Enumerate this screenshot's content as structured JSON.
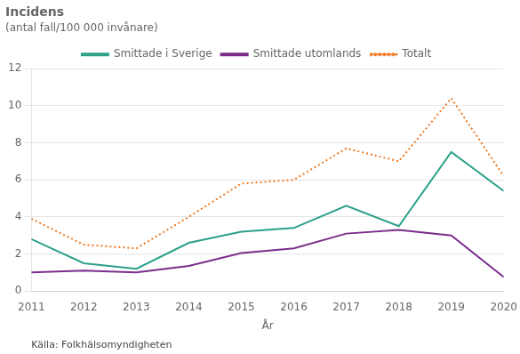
{
  "chart_data": {
    "type": "line",
    "title": "Incidens",
    "subtitle": "(antal fall/100 000 invånare)",
    "xlabel": "År",
    "annotations": [
      "Källa: Folkhälsomyndigheten"
    ],
    "x": [
      2011,
      2012,
      2013,
      2014,
      2015,
      2016,
      2017,
      2018,
      2019,
      2020
    ],
    "series": [
      {
        "name": "Smittade i Sverige",
        "color": "#2ca089",
        "line_style": "solid",
        "values": [
          2.8,
          1.5,
          1.2,
          2.6,
          3.2,
          3.4,
          4.6,
          3.5,
          7.5,
          5.4
        ]
      },
      {
        "name": "Smittade utomlands",
        "color": "#7b2d8b",
        "line_style": "solid",
        "values": [
          1.0,
          1.1,
          1.0,
          1.35,
          2.05,
          2.3,
          3.1,
          3.3,
          3.0,
          0.75
        ]
      },
      {
        "name": "Totalt",
        "color": "#f07820",
        "line_style": "dotted",
        "values": [
          3.9,
          2.5,
          2.3,
          4.0,
          5.8,
          6.0,
          7.7,
          7.0,
          10.4,
          6.2
        ]
      }
    ],
    "xlim": [
      2011,
      2020
    ],
    "xticks": [
      2011,
      2012,
      2013,
      2014,
      2015,
      2016,
      2017,
      2018,
      2019,
      2020
    ],
    "ylim": [
      0,
      12
    ],
    "yticks": [
      0,
      2,
      4,
      6,
      8,
      10,
      12
    ],
    "grid": "y",
    "legend": "top"
  }
}
